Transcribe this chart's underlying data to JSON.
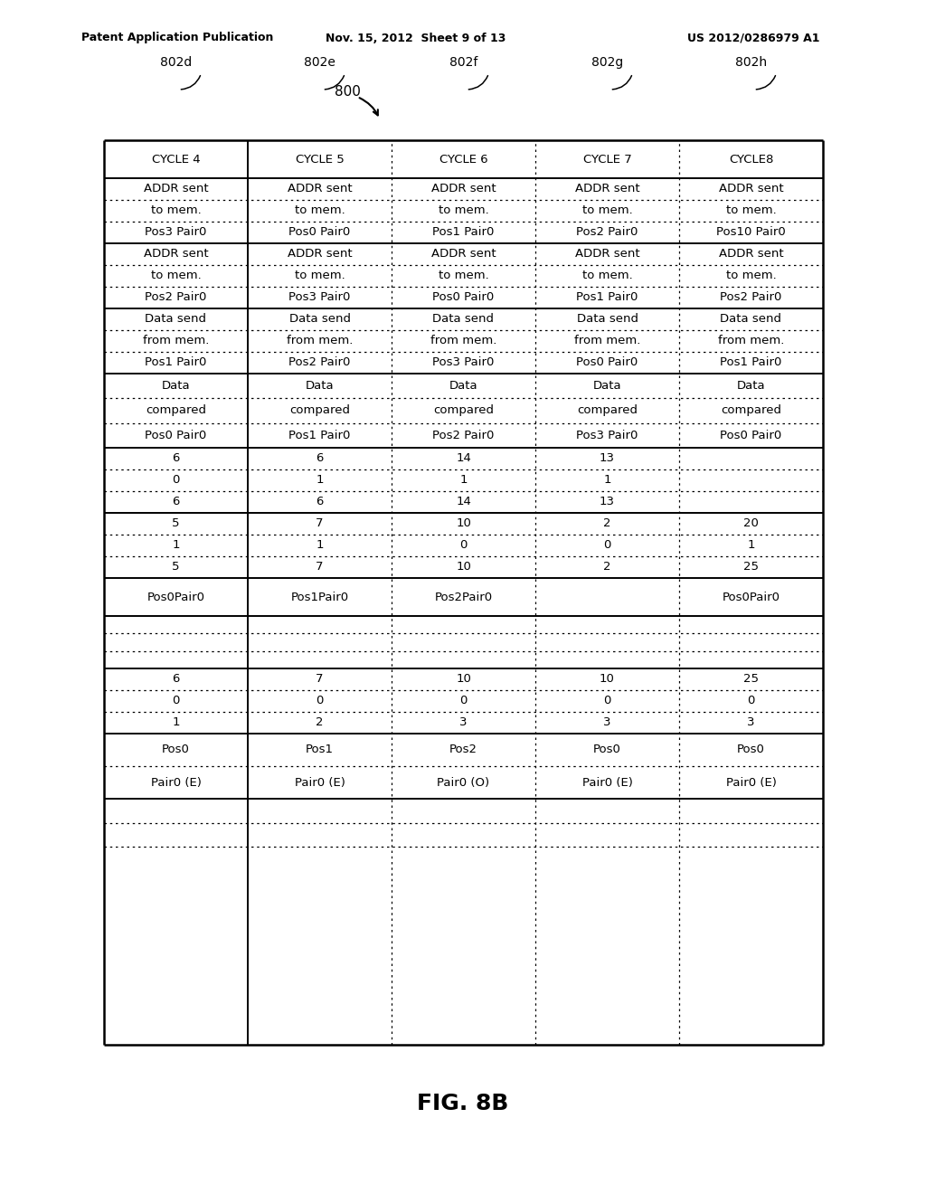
{
  "header_left": "Patent Application Publication",
  "header_mid": "Nov. 15, 2012  Sheet 9 of 13",
  "header_right": "US 2012/0286979 A1",
  "figure_label": "800",
  "fig_caption": "FIG. 8B",
  "col_labels": [
    "802d",
    "802e",
    "802f",
    "802g",
    "802h"
  ],
  "col_headers": [
    "CYCLE 4",
    "CYCLE 5",
    "CYCLE 6",
    "CYCLE 7",
    "CYCLE8"
  ],
  "row_r1": [
    [
      "ADDR sent",
      "to mem.",
      "Pos3 Pair0"
    ],
    [
      "ADDR sent",
      "to mem.",
      "Pos0 Pair0"
    ],
    [
      "ADDR sent",
      "to mem.",
      "Pos1 Pair0"
    ],
    [
      "ADDR sent",
      "to mem.",
      "Pos2 Pair0"
    ],
    [
      "ADDR sent",
      "to mem.",
      "Pos10 Pair0"
    ]
  ],
  "row_r2": [
    [
      "ADDR sent",
      "to mem.",
      "Pos2 Pair0"
    ],
    [
      "ADDR sent",
      "to mem.",
      "Pos3 Pair0"
    ],
    [
      "ADDR sent",
      "to mem.",
      "Pos0 Pair0"
    ],
    [
      "ADDR sent",
      "to mem.",
      "Pos1 Pair0"
    ],
    [
      "ADDR sent",
      "to mem.",
      "Pos2 Pair0"
    ]
  ],
  "row_r3": [
    [
      "Data send",
      "from mem.",
      "Pos1 Pair0"
    ],
    [
      "Data send",
      "from mem.",
      "Pos2 Pair0"
    ],
    [
      "Data send",
      "from mem.",
      "Pos3 Pair0"
    ],
    [
      "Data send",
      "from mem.",
      "Pos0 Pair0"
    ],
    [
      "Data send",
      "from mem.",
      "Pos1 Pair0"
    ]
  ],
  "row_r4": [
    [
      "Data",
      "compared",
      "Pos0 Pair0"
    ],
    [
      "Data",
      "compared",
      "Pos1 Pair0"
    ],
    [
      "Data",
      "compared",
      "Pos2 Pair0"
    ],
    [
      "Data",
      "compared",
      "Pos3 Pair0"
    ],
    [
      "Data",
      "compared",
      "Pos0 Pair0"
    ]
  ],
  "row_r5": [
    [
      "6",
      "0",
      "6"
    ],
    [
      "6",
      "1",
      "6"
    ],
    [
      "14",
      "1",
      "14"
    ],
    [
      "13",
      "1",
      "13"
    ],
    [
      "",
      "",
      ""
    ]
  ],
  "row_r6": [
    [
      "5",
      "1",
      "5"
    ],
    [
      "7",
      "1",
      "7"
    ],
    [
      "10",
      "0",
      "10"
    ],
    [
      "2",
      "0",
      "2"
    ],
    [
      "20",
      "1",
      "25"
    ]
  ],
  "row_r7": [
    "Pos0Pair0",
    "Pos1Pair0",
    "Pos2Pair0",
    "",
    "Pos0Pair0"
  ],
  "row_r8_empty": true,
  "row_r9": [
    [
      "6",
      "0",
      "1"
    ],
    [
      "7",
      "0",
      "2"
    ],
    [
      "10",
      "0",
      "3"
    ],
    [
      "10",
      "0",
      "3"
    ],
    [
      "25",
      "0",
      "3"
    ]
  ],
  "row_r10": [
    [
      "Pos0",
      "Pair0 (E)"
    ],
    [
      "Pos1",
      "Pair0 (E)"
    ],
    [
      "Pos2",
      "Pair0 (O)"
    ],
    [
      "Pos0",
      "Pair0 (E)"
    ],
    [
      "Pos0",
      "Pair0 (E)"
    ]
  ],
  "background": "#ffffff"
}
